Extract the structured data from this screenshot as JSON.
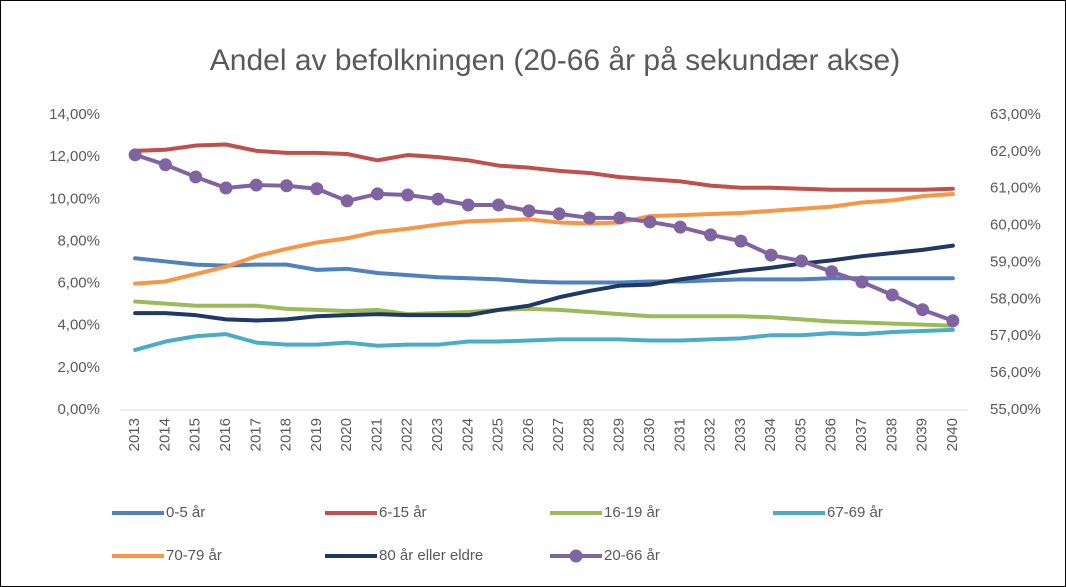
{
  "chart_data": {
    "type": "line",
    "title": "Andel av befolkningen (20-66 år på sekundær akse)",
    "categories": [
      "2013",
      "2014",
      "2015",
      "2016",
      "2017",
      "2018",
      "2019",
      "2020",
      "2021",
      "2022",
      "2023",
      "2024",
      "2025",
      "2026",
      "2027",
      "2028",
      "2029",
      "2030",
      "2031",
      "2032",
      "2033",
      "2034",
      "2035",
      "2036",
      "2037",
      "2038",
      "2039",
      "2040"
    ],
    "series": [
      {
        "name": "0-5 år",
        "color": "#4f81bd",
        "values": [
          7.2,
          7.05,
          6.9,
          6.85,
          6.9,
          6.9,
          6.65,
          6.7,
          6.5,
          6.4,
          6.3,
          6.25,
          6.2,
          6.1,
          6.05,
          6.05,
          6.05,
          6.1,
          6.1,
          6.15,
          6.2,
          6.2,
          6.2,
          6.25,
          6.25,
          6.25,
          6.25,
          6.25
        ]
      },
      {
        "name": "6-15 år",
        "color": "#c0504d",
        "values": [
          12.3,
          12.35,
          12.55,
          12.6,
          12.3,
          12.2,
          12.2,
          12.15,
          11.85,
          12.1,
          12.0,
          11.85,
          11.6,
          11.5,
          11.35,
          11.25,
          11.05,
          10.95,
          10.85,
          10.65,
          10.55,
          10.55,
          10.5,
          10.45,
          10.45,
          10.45,
          10.45,
          10.5
        ]
      },
      {
        "name": "16-19 år",
        "color": "#9bbb59",
        "values": [
          5.15,
          5.05,
          4.95,
          4.95,
          4.95,
          4.8,
          4.75,
          4.7,
          4.75,
          4.55,
          4.6,
          4.65,
          4.75,
          4.8,
          4.75,
          4.65,
          4.55,
          4.45,
          4.45,
          4.45,
          4.45,
          4.4,
          4.3,
          4.2,
          4.15,
          4.1,
          4.05,
          4.0
        ]
      },
      {
        "name": "67-69 år",
        "color": "#4bacc6",
        "values": [
          2.85,
          3.25,
          3.5,
          3.6,
          3.2,
          3.1,
          3.1,
          3.2,
          3.05,
          3.1,
          3.1,
          3.25,
          3.25,
          3.3,
          3.35,
          3.35,
          3.35,
          3.3,
          3.3,
          3.35,
          3.4,
          3.55,
          3.55,
          3.65,
          3.6,
          3.7,
          3.75,
          3.8
        ]
      },
      {
        "name": "70-79 år",
        "color": "#f79646",
        "values": [
          6.0,
          6.1,
          6.45,
          6.8,
          7.3,
          7.65,
          7.95,
          8.15,
          8.45,
          8.6,
          8.8,
          8.95,
          9.0,
          9.05,
          8.9,
          8.85,
          8.9,
          9.2,
          9.25,
          9.3,
          9.35,
          9.45,
          9.55,
          9.65,
          9.85,
          9.95,
          10.15,
          10.25
        ]
      },
      {
        "name": "80 år eller eldre",
        "color": "#1f3864",
        "values": [
          4.6,
          4.6,
          4.5,
          4.3,
          4.25,
          4.3,
          4.45,
          4.5,
          4.55,
          4.5,
          4.5,
          4.5,
          4.75,
          4.95,
          5.35,
          5.65,
          5.9,
          5.95,
          6.2,
          6.4,
          6.6,
          6.75,
          6.95,
          7.1,
          7.3,
          7.45,
          7.6,
          7.8
        ]
      },
      {
        "name": "20-66 år",
        "color": "#8064a2",
        "axis": "y2",
        "marker": "circle",
        "values": [
          61.92,
          61.65,
          61.32,
          61.02,
          61.1,
          61.08,
          61.0,
          60.67,
          60.86,
          60.83,
          60.72,
          60.56,
          60.56,
          60.4,
          60.32,
          60.21,
          60.21,
          60.1,
          59.96,
          59.75,
          59.58,
          59.2,
          59.04,
          58.75,
          58.47,
          58.12,
          57.72,
          57.42
        ]
      }
    ],
    "ylim": [
      0,
      14
    ],
    "yticks": [
      {
        "value": 0,
        "label": "0,00%"
      },
      {
        "value": 2,
        "label": "2,00%"
      },
      {
        "value": 4,
        "label": "4,00%"
      },
      {
        "value": 6,
        "label": "6,00%"
      },
      {
        "value": 8,
        "label": "8,00%"
      },
      {
        "value": 10,
        "label": "10,00%"
      },
      {
        "value": 12,
        "label": "12,00%"
      },
      {
        "value": 14,
        "label": "14,00%"
      }
    ],
    "y2lim": [
      55,
      63
    ],
    "y2ticks": [
      {
        "value": 55,
        "label": "55,00%"
      },
      {
        "value": 56,
        "label": "56,00%"
      },
      {
        "value": 57,
        "label": "57,00%"
      },
      {
        "value": 58,
        "label": "58,00%"
      },
      {
        "value": 59,
        "label": "59,00%"
      },
      {
        "value": 60,
        "label": "60,00%"
      },
      {
        "value": 61,
        "label": "61,00%"
      },
      {
        "value": 62,
        "label": "62,00%"
      },
      {
        "value": 63,
        "label": "63,00%"
      }
    ],
    "legend": "bottom"
  }
}
